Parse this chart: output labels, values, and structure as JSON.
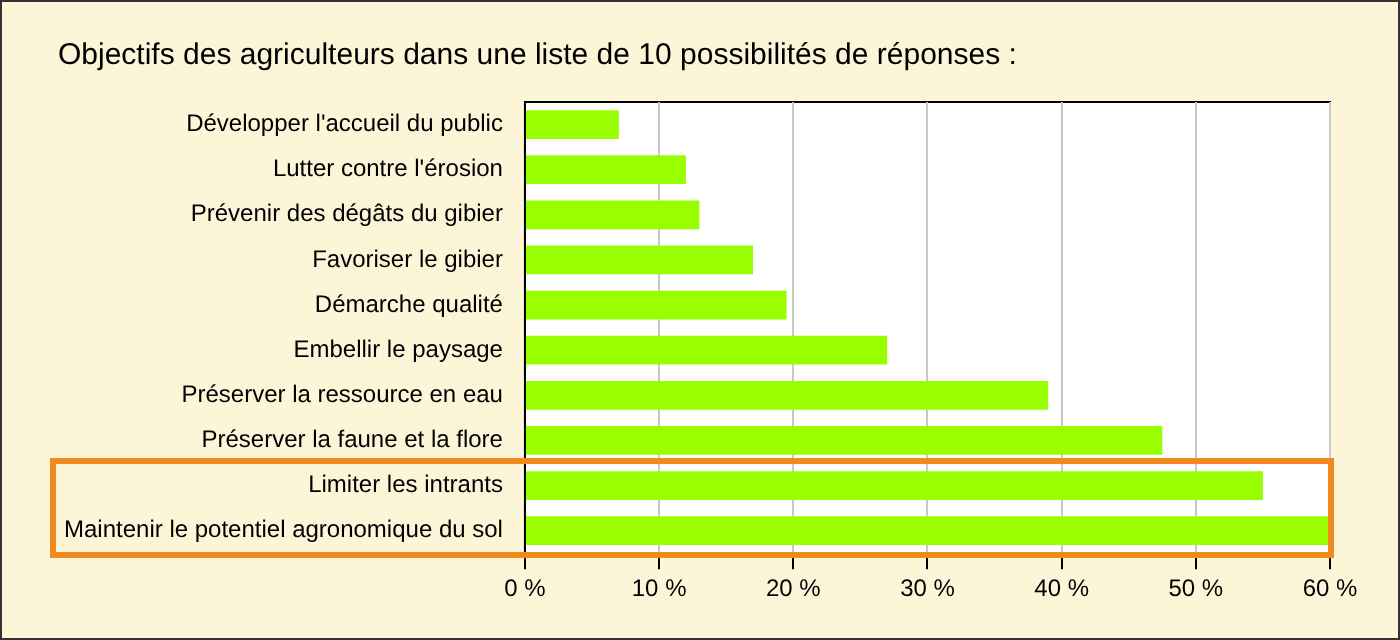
{
  "chart_data": {
    "type": "bar",
    "orientation": "horizontal",
    "title": "Objectifs des agriculteurs dans une liste de 10 possibilités de réponses :",
    "categories": [
      "Développer l'accueil du public",
      "Lutter contre l'érosion",
      "Prévenir des dégâts du gibier",
      "Favoriser le gibier",
      "Démarche qualité",
      "Embellir le paysage",
      "Préserver la ressource en eau",
      "Préserver la faune et la flore",
      "Limiter les intrants",
      "Maintenir le potentiel agronomique du sol"
    ],
    "values": [
      7,
      12,
      13,
      17,
      19.5,
      27,
      39,
      47.5,
      55,
      60
    ],
    "color": "#99ff00",
    "xlim": [
      0,
      60
    ],
    "xticks": [
      {
        "value": 0,
        "label": "0 %"
      },
      {
        "value": 10,
        "label": "10 %"
      },
      {
        "value": 20,
        "label": "20 %"
      },
      {
        "value": 30,
        "label": "30 %"
      },
      {
        "value": 40,
        "label": "40 %"
      },
      {
        "value": 50,
        "label": "50 %"
      },
      {
        "value": 60,
        "label": "60 %"
      }
    ],
    "grid": "x",
    "legend": false
  }
}
